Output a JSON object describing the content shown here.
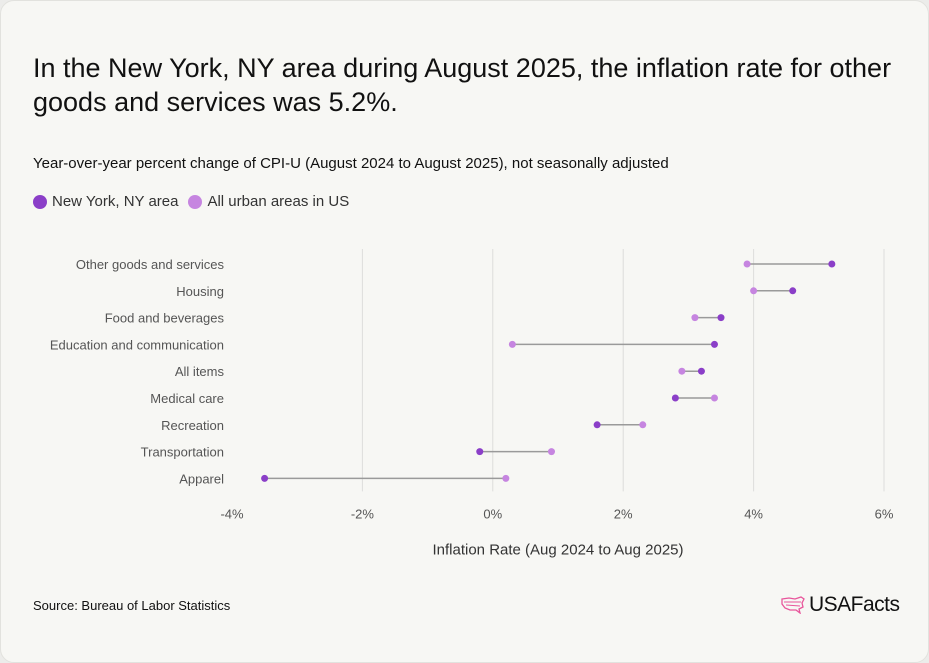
{
  "title": "In the New York, NY area during August 2025, the inflation rate for other goods and services was 5.2%.",
  "subtitle": "Year-over-year percent change of CPI-U (August 2024 to August 2025), not seasonally adjusted",
  "source": "Source: Bureau of Labor Statistics",
  "logo": "USAFacts",
  "colors": {
    "ny": "#8b3fc8",
    "us": "#c685e0",
    "connector": "#9a9a9a",
    "grid": "#dddddb"
  },
  "chart_data": {
    "type": "dumbbell",
    "xlabel": "Inflation Rate (Aug 2024 to Aug 2025)",
    "xlim": [
      -4,
      6
    ],
    "xticks": [
      -4,
      -2,
      0,
      2,
      4,
      6
    ],
    "xtick_labels": [
      "-4%",
      "-2%",
      "0%",
      "2%",
      "4%",
      "6%"
    ],
    "grid": "vertical",
    "legend": "top-left",
    "categories": [
      "Other goods and services",
      "Housing",
      "Food and beverages",
      "Education and communication",
      "All items",
      "Medical care",
      "Recreation",
      "Transportation",
      "Apparel"
    ],
    "series": [
      {
        "name": "New York, NY area",
        "values": [
          5.2,
          4.6,
          3.5,
          3.4,
          3.2,
          2.8,
          1.6,
          -0.2,
          -3.5
        ]
      },
      {
        "name": "All urban areas in US",
        "values": [
          3.9,
          4.0,
          3.1,
          0.3,
          2.9,
          3.4,
          2.3,
          0.9,
          0.2
        ]
      }
    ]
  }
}
